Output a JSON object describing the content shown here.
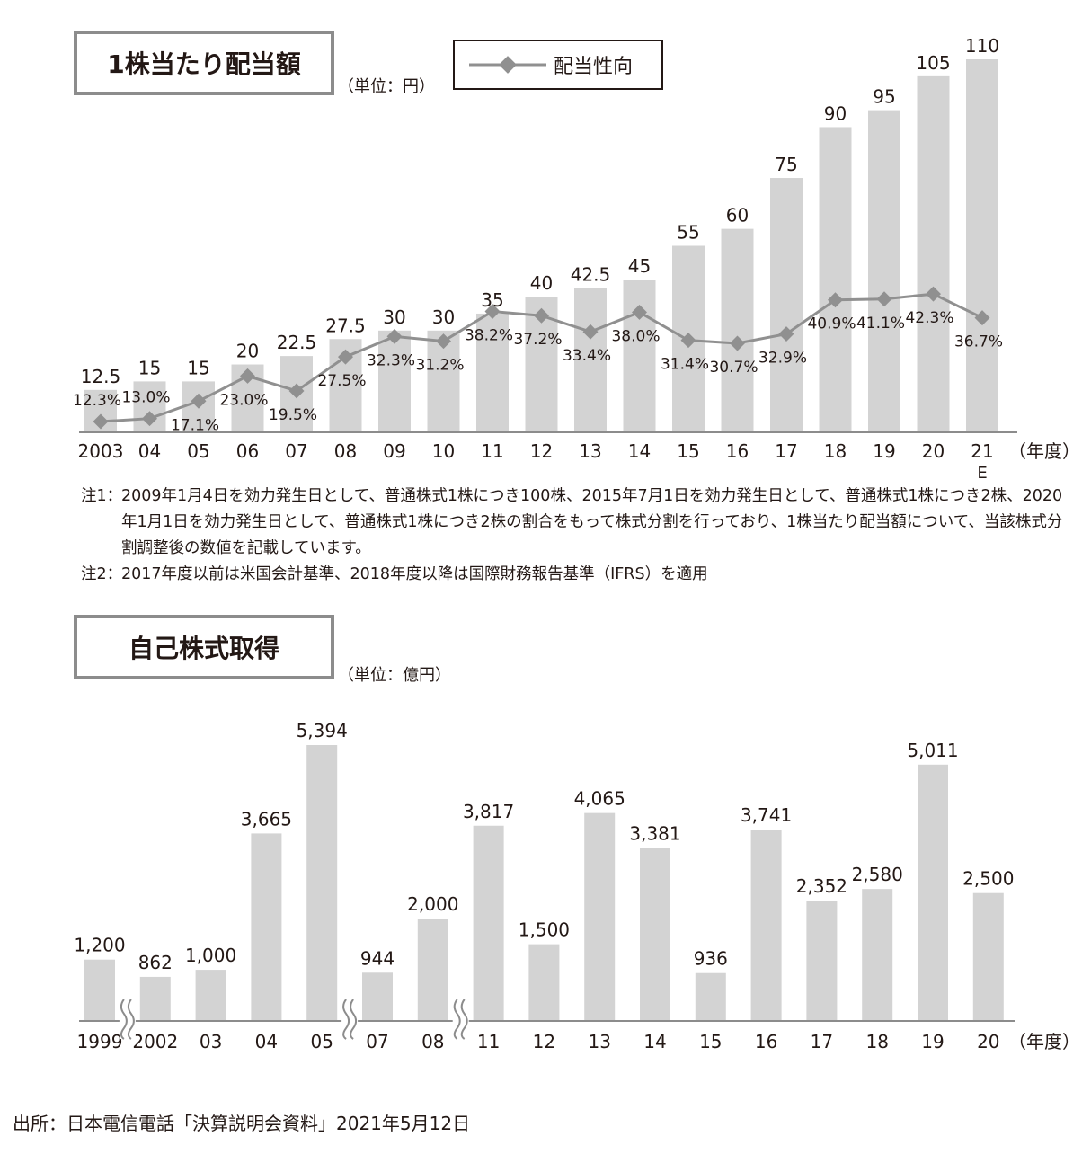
{
  "chart_data": [
    {
      "type": "bar",
      "title": "1株当たり配当額",
      "unit_label": "（単位：円）",
      "legend": [
        "配当性向"
      ],
      "x_unit": "（年度）",
      "categories": [
        "2003",
        "04",
        "05",
        "06",
        "07",
        "08",
        "09",
        "10",
        "11",
        "12",
        "13",
        "14",
        "15",
        "16",
        "17",
        "18",
        "19",
        "20",
        "21"
      ],
      "estimate_marker": "E",
      "ylim": [
        0,
        110
      ],
      "series": [
        {
          "values": [
            12.5,
            15,
            15,
            20,
            22.5,
            27.5,
            30,
            30,
            35,
            40,
            42.5,
            45,
            55,
            60,
            75,
            90,
            95,
            105,
            110
          ],
          "labels": [
            "12.5",
            "15",
            "15",
            "20",
            "22.5",
            "27.5",
            "30",
            "30",
            "35",
            "40",
            "42.5",
            "45",
            "55",
            "60",
            "75",
            "90",
            "95",
            "105",
            "110"
          ]
        },
        {
          "name": "配当性向",
          "type": "line",
          "values": [
            12.3,
            13.0,
            17.1,
            23.0,
            19.5,
            27.5,
            32.3,
            31.2,
            38.2,
            37.2,
            33.4,
            38.0,
            31.4,
            30.7,
            32.9,
            40.9,
            41.1,
            42.3,
            36.7
          ],
          "labels": [
            "12.3%",
            "13.0%",
            "17.1%",
            "23.0%",
            "19.5%",
            "27.5%",
            "32.3%",
            "31.2%",
            "38.2%",
            "37.2%",
            "33.4%",
            "38.0%",
            "31.4%",
            "30.7%",
            "32.9%",
            "40.9%",
            "41.1%",
            "42.3%",
            "36.7%"
          ]
        }
      ]
    },
    {
      "type": "bar",
      "title": "自己株式取得",
      "unit_label": "（単位：億円）",
      "x_unit": "（年度）",
      "categories": [
        "1999",
        "2002",
        "03",
        "04",
        "05",
        "07",
        "08",
        "11",
        "12",
        "13",
        "14",
        "15",
        "16",
        "17",
        "18",
        "19",
        "20"
      ],
      "axis_breaks_after": [
        "1999",
        "05",
        "08"
      ],
      "ylim": [
        0,
        5394
      ],
      "values": [
        1200,
        862,
        1000,
        3665,
        5394,
        944,
        2000,
        3817,
        1500,
        4065,
        3381,
        936,
        3741,
        2352,
        2580,
        5011,
        2500
      ],
      "labels": [
        "1,200",
        "862",
        "1,000",
        "3,665",
        "5,394",
        "944",
        "2,000",
        "3,817",
        "1,500",
        "4,065",
        "3,381",
        "936",
        "3,741",
        "2,352",
        "2,580",
        "5,011",
        "2,500"
      ]
    }
  ],
  "notes": [
    {
      "label": "注1：",
      "text": "2009年1月4日を効力発生日として、普通株式1株につき100株、2015年7月1日を効力発生日として、普通株式1株につき2株、2020年1月1日を効力発生日として、普通株式1株につき2株の割合をもって株式分割を行っており、1株当たり配当額について、当該株式分割調整後の数値を記載しています。"
    },
    {
      "label": "注2：",
      "text": "2017年度以前は米国会計基準、2018年度以降は国際財務報告基準（IFRS）を適用"
    }
  ],
  "source": "出所：日本電信電話「決算説明会資料」2021年5月12日",
  "colors": {
    "bar": "#d3d3d3",
    "line": "#909090",
    "text": "#231815",
    "axis": "#8c8c8c"
  }
}
